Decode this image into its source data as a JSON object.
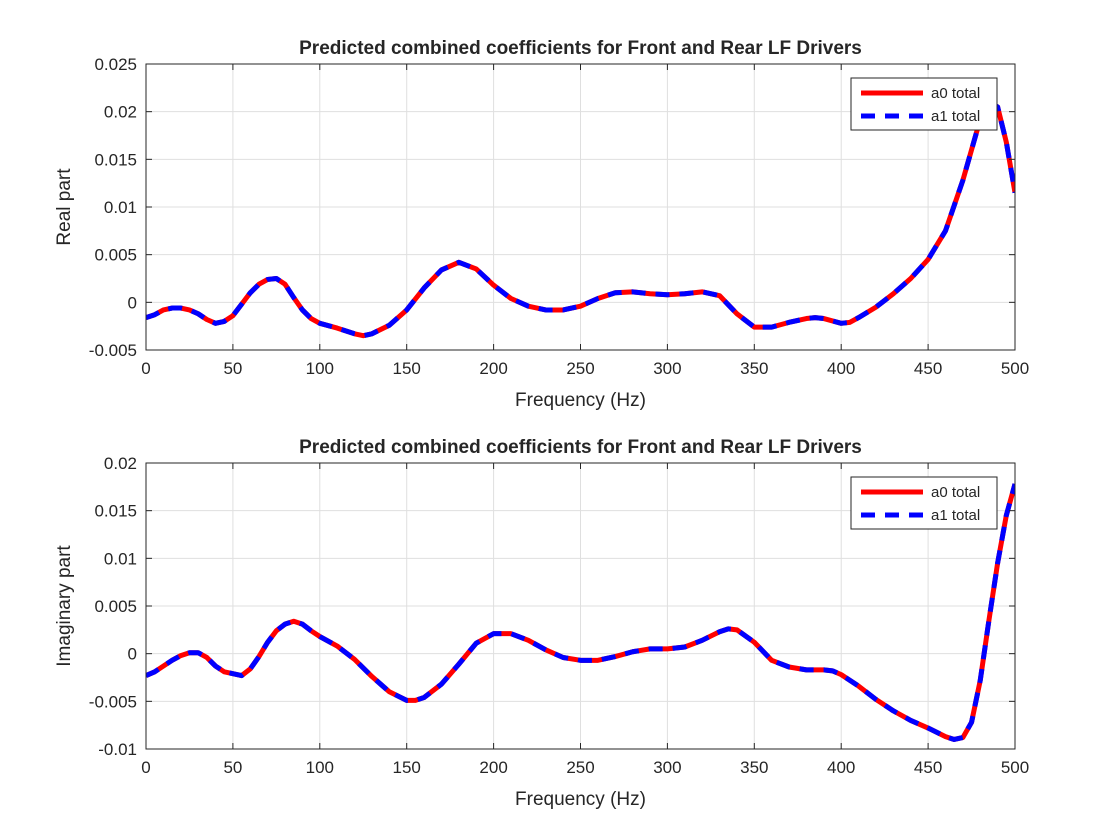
{
  "colors": {
    "a0": "#ff0000",
    "a1": "#0000ff",
    "grid": "#dfdfdf",
    "axis": "#262626"
  },
  "chart_data": [
    {
      "type": "line",
      "title": "Predicted combined coefficients for Front and Rear LF Drivers",
      "xlabel": "Frequency (Hz)",
      "ylabel": "Real part",
      "xlim": [
        0,
        500
      ],
      "ylim": [
        -0.005,
        0.025
      ],
      "xticks": [
        "0",
        "50",
        "100",
        "150",
        "200",
        "250",
        "300",
        "350",
        "400",
        "450",
        "500"
      ],
      "yticks": [
        "-0.005",
        "0",
        "0.005",
        "0.01",
        "0.015",
        "0.02",
        "0.025"
      ],
      "grid": true,
      "legend_position": "top-right",
      "x": [
        0,
        5,
        10,
        15,
        20,
        25,
        30,
        35,
        40,
        45,
        50,
        55,
        60,
        65,
        70,
        75,
        80,
        85,
        90,
        95,
        100,
        110,
        120,
        125,
        130,
        140,
        150,
        160,
        170,
        180,
        190,
        200,
        210,
        220,
        230,
        240,
        250,
        260,
        270,
        280,
        290,
        300,
        310,
        320,
        330,
        340,
        350,
        360,
        370,
        380,
        385,
        390,
        400,
        405,
        410,
        420,
        430,
        440,
        450,
        460,
        470,
        475,
        480,
        485,
        490,
        495,
        500
      ],
      "series": [
        {
          "name": "a0 total",
          "values": [
            -0.0016,
            -0.0013,
            -0.0008,
            -0.0006,
            -0.0006,
            -0.0008,
            -0.0012,
            -0.0018,
            -0.0022,
            -0.002,
            -0.0014,
            -0.0002,
            0.001,
            0.0019,
            0.0024,
            0.0025,
            0.0019,
            0.0005,
            -0.0008,
            -0.0017,
            -0.0022,
            -0.0027,
            -0.0033,
            -0.0035,
            -0.0033,
            -0.0024,
            -0.0008,
            0.0015,
            0.0034,
            0.0042,
            0.0035,
            0.0018,
            0.0004,
            -0.0004,
            -0.0008,
            -0.0008,
            -0.0004,
            0.0004,
            0.001,
            0.0011,
            0.0009,
            0.0008,
            0.0009,
            0.0011,
            0.0007,
            -0.0012,
            -0.0026,
            -0.0026,
            -0.0021,
            -0.0017,
            -0.0016,
            -0.0017,
            -0.0022,
            -0.0021,
            -0.0016,
            -0.0005,
            0.0009,
            0.0025,
            0.0045,
            0.0075,
            0.0128,
            0.016,
            0.0192,
            0.021,
            0.0205,
            0.0168,
            0.0115
          ]
        },
        {
          "name": "a1 total",
          "values": [
            -0.0016,
            -0.0013,
            -0.0008,
            -0.0006,
            -0.0006,
            -0.0008,
            -0.0012,
            -0.0018,
            -0.0022,
            -0.002,
            -0.0014,
            -0.0002,
            0.001,
            0.0019,
            0.0024,
            0.0025,
            0.0019,
            0.0005,
            -0.0008,
            -0.0017,
            -0.0022,
            -0.0027,
            -0.0033,
            -0.0035,
            -0.0033,
            -0.0024,
            -0.0008,
            0.0015,
            0.0034,
            0.0042,
            0.0035,
            0.0018,
            0.0004,
            -0.0004,
            -0.0008,
            -0.0008,
            -0.0004,
            0.0004,
            0.001,
            0.0011,
            0.0009,
            0.0008,
            0.0009,
            0.0011,
            0.0007,
            -0.0012,
            -0.0026,
            -0.0026,
            -0.0021,
            -0.0017,
            -0.0016,
            -0.0017,
            -0.0022,
            -0.0021,
            -0.0016,
            -0.0005,
            0.0009,
            0.0025,
            0.0045,
            0.0075,
            0.0128,
            0.016,
            0.0192,
            0.021,
            0.0205,
            0.0168,
            0.0115
          ]
        }
      ]
    },
    {
      "type": "line",
      "title": "Predicted combined coefficients for Front and Rear LF Drivers",
      "xlabel": "Frequency (Hz)",
      "ylabel": "Imaginary part",
      "xlim": [
        0,
        500
      ],
      "ylim": [
        -0.01,
        0.02
      ],
      "xticks": [
        "0",
        "50",
        "100",
        "150",
        "200",
        "250",
        "300",
        "350",
        "400",
        "450",
        "500"
      ],
      "yticks": [
        "-0.01",
        "-0.005",
        "0",
        "0.005",
        "0.01",
        "0.015",
        "0.02"
      ],
      "grid": true,
      "legend_position": "top-right",
      "x": [
        0,
        5,
        10,
        15,
        20,
        25,
        30,
        35,
        40,
        45,
        50,
        55,
        60,
        65,
        70,
        75,
        80,
        85,
        90,
        95,
        100,
        110,
        120,
        130,
        140,
        150,
        155,
        160,
        170,
        180,
        190,
        200,
        210,
        220,
        230,
        240,
        250,
        260,
        270,
        280,
        290,
        300,
        310,
        320,
        330,
        335,
        340,
        350,
        360,
        370,
        380,
        390,
        395,
        400,
        410,
        420,
        430,
        440,
        450,
        460,
        465,
        470,
        475,
        480,
        485,
        490,
        495,
        500
      ],
      "series": [
        {
          "name": "a0 total",
          "values": [
            -0.0023,
            -0.0019,
            -0.0013,
            -0.0007,
            -0.0002,
            0.0001,
            0.0001,
            -0.0004,
            -0.0013,
            -0.0019,
            -0.0021,
            -0.0023,
            -0.0016,
            -0.0003,
            0.0012,
            0.0024,
            0.0031,
            0.0034,
            0.0031,
            0.0024,
            0.0018,
            0.0008,
            -0.0006,
            -0.0024,
            -0.004,
            -0.0049,
            -0.0049,
            -0.0046,
            -0.0032,
            -0.0011,
            0.0011,
            0.0021,
            0.0021,
            0.0014,
            0.0004,
            -0.0004,
            -0.0007,
            -0.0007,
            -0.0003,
            0.0002,
            0.0005,
            0.0005,
            0.0007,
            0.0014,
            0.0023,
            0.0026,
            0.0025,
            0.0012,
            -0.0007,
            -0.0014,
            -0.0017,
            -0.0017,
            -0.0018,
            -0.0022,
            -0.0034,
            -0.0048,
            -0.006,
            -0.007,
            -0.0078,
            -0.0087,
            -0.009,
            -0.0088,
            -0.0072,
            -0.0028,
            0.0035,
            0.0095,
            0.0145,
            0.0178
          ]
        },
        {
          "name": "a1 total",
          "values": [
            -0.0023,
            -0.0019,
            -0.0013,
            -0.0007,
            -0.0002,
            0.0001,
            0.0001,
            -0.0004,
            -0.0013,
            -0.0019,
            -0.0021,
            -0.0023,
            -0.0016,
            -0.0003,
            0.0012,
            0.0024,
            0.0031,
            0.0034,
            0.0031,
            0.0024,
            0.0018,
            0.0008,
            -0.0006,
            -0.0024,
            -0.004,
            -0.0049,
            -0.0049,
            -0.0046,
            -0.0032,
            -0.0011,
            0.0011,
            0.0021,
            0.0021,
            0.0014,
            0.0004,
            -0.0004,
            -0.0007,
            -0.0007,
            -0.0003,
            0.0002,
            0.0005,
            0.0005,
            0.0007,
            0.0014,
            0.0023,
            0.0026,
            0.0025,
            0.0012,
            -0.0007,
            -0.0014,
            -0.0017,
            -0.0017,
            -0.0018,
            -0.0022,
            -0.0034,
            -0.0048,
            -0.006,
            -0.007,
            -0.0078,
            -0.0087,
            -0.009,
            -0.0088,
            -0.0072,
            -0.0028,
            0.0035,
            0.0095,
            0.0145,
            0.0178
          ]
        }
      ]
    }
  ]
}
